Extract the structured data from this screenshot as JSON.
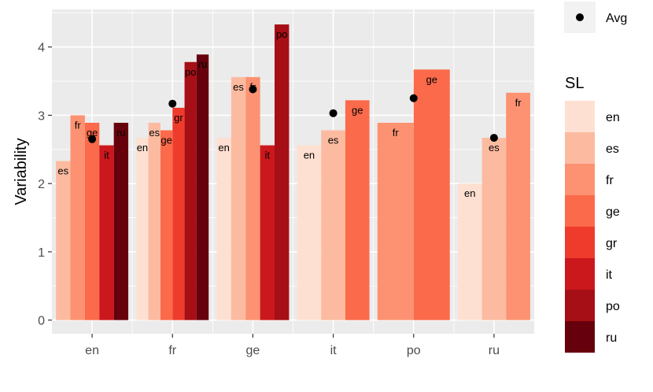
{
  "chart_data": {
    "type": "bar",
    "ylabel": "Variability",
    "xlabel": "",
    "ylim": [
      -0.2,
      4.55
    ],
    "yticks": [
      0,
      1,
      2,
      3,
      4
    ],
    "grid": true,
    "legend_placement": "right",
    "avg_legend_label": "Avg",
    "legend_title": "SL",
    "categories": [
      "en",
      "fr",
      "ge",
      "it",
      "po",
      "ru"
    ],
    "series_names": [
      "en",
      "es",
      "fr",
      "ge",
      "gr",
      "it",
      "po",
      "ru"
    ],
    "colors": {
      "en": "#fee0d2",
      "es": "#fcbba1",
      "fr": "#fc9272",
      "ge": "#fb6a4a",
      "gr": "#ef3b2c",
      "it": "#cb181d",
      "po": "#a50f15",
      "ru": "#67000d"
    },
    "groups": [
      {
        "category": "en",
        "avg": 2.65,
        "bars": [
          {
            "sl": "es",
            "value": 2.33
          },
          {
            "sl": "fr",
            "value": 3.0
          },
          {
            "sl": "ge",
            "value": 2.89
          },
          {
            "sl": "it",
            "value": 2.56
          },
          {
            "sl": "ru",
            "value": 2.89
          }
        ]
      },
      {
        "category": "fr",
        "avg": 3.17,
        "bars": [
          {
            "sl": "en",
            "value": 2.67
          },
          {
            "sl": "es",
            "value": 2.89
          },
          {
            "sl": "ge",
            "value": 2.78
          },
          {
            "sl": "gr",
            "value": 3.11
          },
          {
            "sl": "po",
            "value": 3.78
          },
          {
            "sl": "ru",
            "value": 3.89
          }
        ]
      },
      {
        "category": "ge",
        "avg": 3.38,
        "bars": [
          {
            "sl": "en",
            "value": 2.67
          },
          {
            "sl": "es",
            "value": 3.56
          },
          {
            "sl": "fr",
            "value": 3.56
          },
          {
            "sl": "it",
            "value": 2.56
          },
          {
            "sl": "po",
            "value": 4.33
          }
        ]
      },
      {
        "category": "it",
        "avg": 3.03,
        "bars": [
          {
            "sl": "en",
            "value": 2.56
          },
          {
            "sl": "es",
            "value": 2.78
          },
          {
            "sl": "ge",
            "value": 3.22
          }
        ]
      },
      {
        "category": "po",
        "avg": 3.25,
        "bars": [
          {
            "sl": "fr",
            "value": 2.89
          },
          {
            "sl": "ge",
            "value": 3.67
          }
        ]
      },
      {
        "category": "ru",
        "avg": 2.67,
        "bars": [
          {
            "sl": "en",
            "value": 2.0
          },
          {
            "sl": "es",
            "value": 2.67
          },
          {
            "sl": "fr",
            "value": 3.33
          }
        ]
      }
    ]
  }
}
